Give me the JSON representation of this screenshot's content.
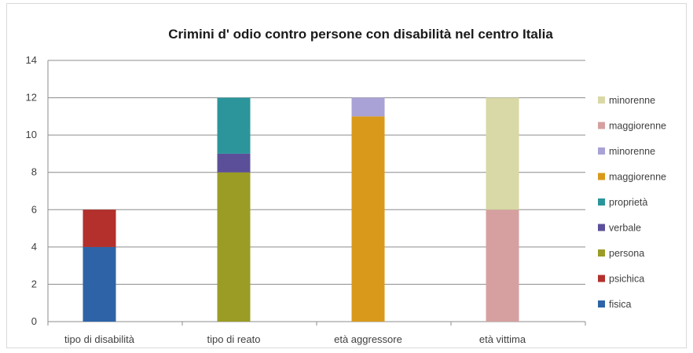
{
  "chart_data": {
    "type": "bar",
    "stacked": true,
    "title": "Crimini d' odio contro persone con disabilità nel centro Italia",
    "xlabel": "",
    "ylabel": "",
    "ylim": [
      0,
      14
    ],
    "yticks": [
      0,
      2,
      4,
      6,
      8,
      10,
      12,
      14
    ],
    "grid": true,
    "legend_position": "right",
    "categories": [
      "tipo di disabilità",
      "tipo di reato",
      "età aggressore",
      "età vittima"
    ],
    "series": [
      {
        "name": "fisica",
        "color": "#2e64a7",
        "values": [
          4,
          0,
          0,
          0
        ]
      },
      {
        "name": "psichica",
        "color": "#b3302c",
        "values": [
          2,
          0,
          0,
          0
        ]
      },
      {
        "name": "persona",
        "color": "#9a9c25",
        "values": [
          0,
          8,
          0,
          0
        ]
      },
      {
        "name": "verbale",
        "color": "#5c4f9a",
        "values": [
          0,
          1,
          0,
          0
        ]
      },
      {
        "name": "proprietà",
        "color": "#2b959b",
        "values": [
          0,
          3,
          0,
          0
        ]
      },
      {
        "name": "maggiorenne",
        "color": "#d99a1c",
        "values": [
          0,
          0,
          11,
          0
        ]
      },
      {
        "name": "minorenne",
        "color": "#a8a2d6",
        "values": [
          0,
          0,
          1,
          0
        ]
      },
      {
        "name": "maggiorenne",
        "color": "#d6a0a0",
        "values": [
          0,
          0,
          0,
          6
        ]
      },
      {
        "name": "minorenne",
        "color": "#d8d9a6",
        "values": [
          0,
          0,
          0,
          6
        ]
      }
    ]
  }
}
